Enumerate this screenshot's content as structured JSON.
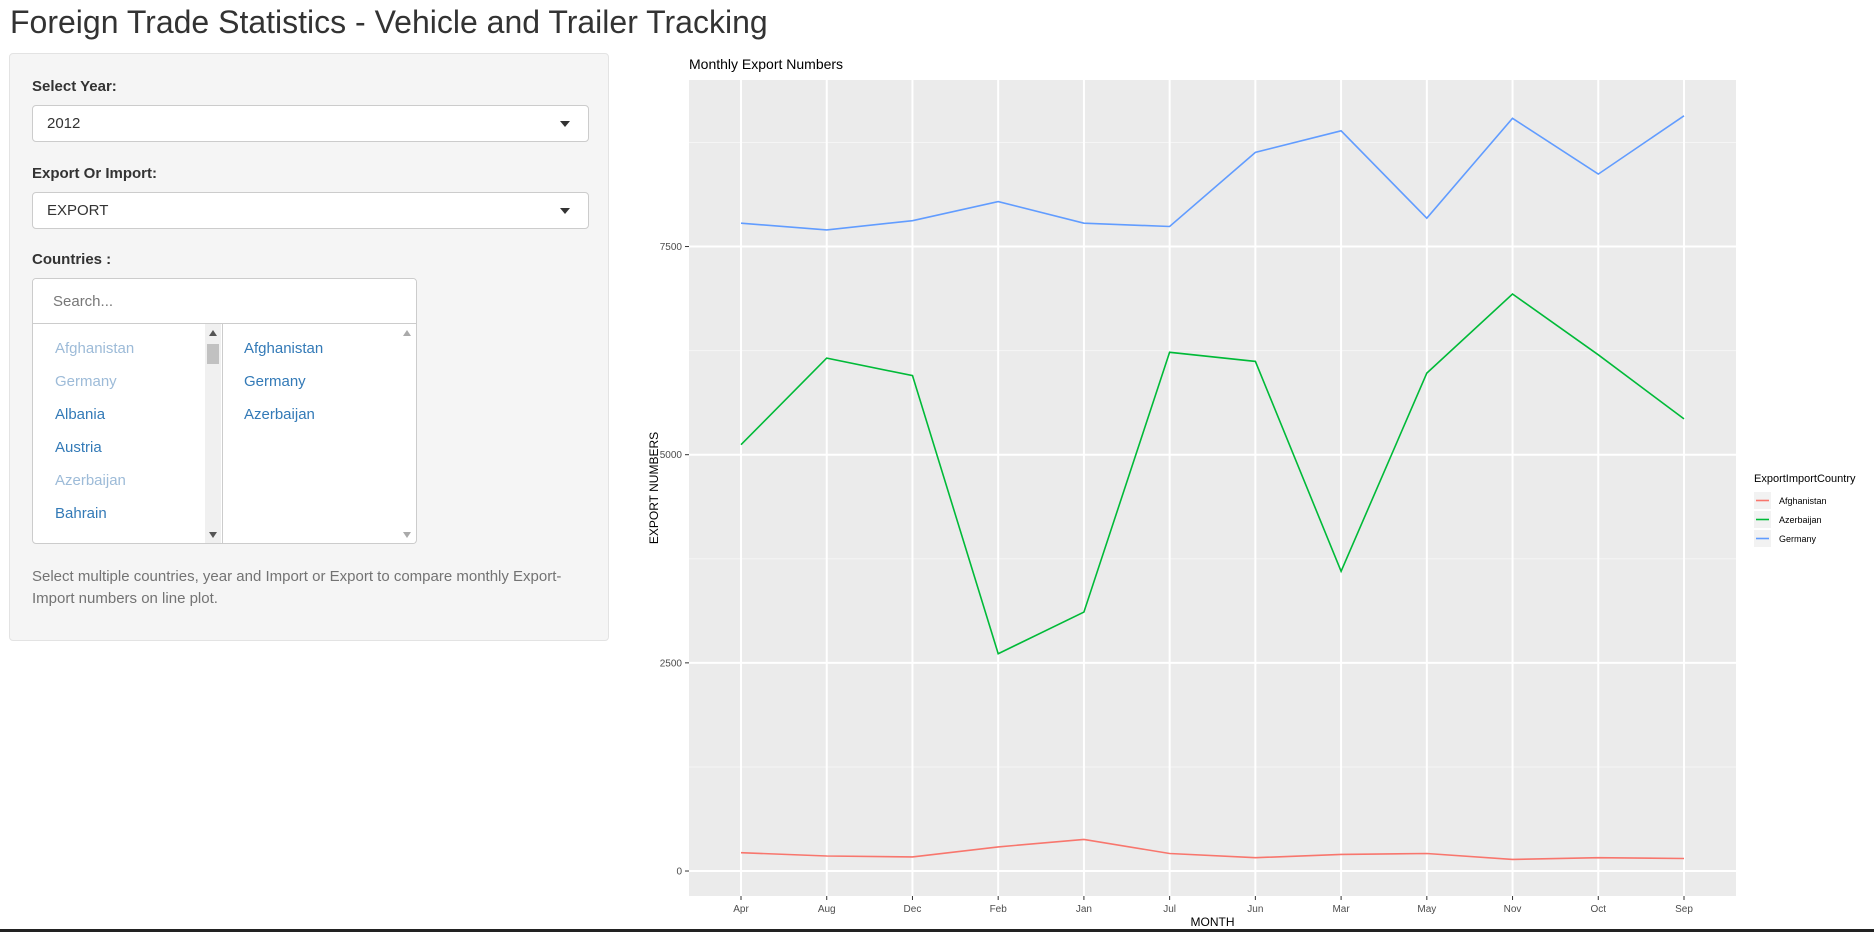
{
  "app": {
    "title": "Foreign Trade Statistics - Vehicle and Trailer Tracking"
  },
  "sidebar": {
    "year": {
      "label": "Select Year:",
      "value": "2012"
    },
    "mode": {
      "label": "Export Or Import:",
      "value": "EXPORT"
    },
    "countries": {
      "label": "Countries :",
      "search_placeholder": "Search...",
      "available": [
        {
          "name": "Afghanistan",
          "state": "selected"
        },
        {
          "name": "Germany",
          "state": "selected"
        },
        {
          "name": "Albania",
          "state": "available"
        },
        {
          "name": "Austria",
          "state": "available"
        },
        {
          "name": "Azerbaijan",
          "state": "selected"
        },
        {
          "name": "Bahrain",
          "state": "available"
        }
      ],
      "selected": [
        "Afghanistan",
        "Germany",
        "Azerbaijan"
      ]
    },
    "help": "Select multiple countries, year and Import or Export to compare monthly Export-Import numbers on line plot."
  },
  "chart_data": {
    "type": "line",
    "title": "Monthly Export Numbers",
    "xlabel": "MONTH",
    "ylabel": "EXPORT NUMBERS",
    "categories": [
      "Apr",
      "Aug",
      "Dec",
      "Feb",
      "Jan",
      "Jul",
      "Jun",
      "Mar",
      "May",
      "Nov",
      "Oct",
      "Sep"
    ],
    "yticks": [
      0,
      2500,
      5000,
      7500
    ],
    "ylim": [
      -300,
      9500
    ],
    "grid": true,
    "legend_title": "ExportImportCountry",
    "legend_position": "right",
    "series": [
      {
        "name": "Afghanistan",
        "color": "#F8766D",
        "values": [
          220,
          180,
          170,
          290,
          380,
          210,
          160,
          200,
          210,
          140,
          160,
          150
        ]
      },
      {
        "name": "Azerbaijan",
        "color": "#00BA38",
        "values": [
          5120,
          6160,
          5950,
          2610,
          3110,
          6230,
          6120,
          3600,
          5980,
          6930,
          6200,
          5430
        ]
      },
      {
        "name": "Germany",
        "color": "#619CFF",
        "values": [
          7780,
          7700,
          7810,
          8040,
          7780,
          7740,
          8630,
          8890,
          7840,
          9040,
          8370,
          9070
        ]
      }
    ]
  }
}
